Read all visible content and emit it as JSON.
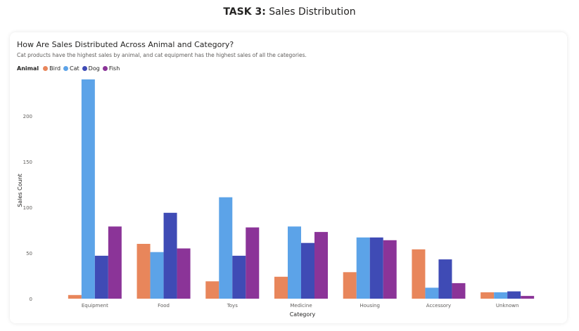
{
  "page": {
    "title_bold": "TASK 3:",
    "title_rest": "Sales Distribution"
  },
  "chart_data": {
    "type": "bar",
    "title": "How Are Sales Distributed Across Animal and Category?",
    "subtitle": "Cat products have the highest sales by animal, and cat equipment has the highest sales of all the categories.",
    "legend_title": "Animal",
    "legend_position": "top-left",
    "xlabel": "Category",
    "ylabel": "Sales Count",
    "ylim": [
      0,
      240
    ],
    "yticks": [
      0,
      50,
      100,
      150,
      200
    ],
    "grid": false,
    "categories": [
      "Equipment",
      "Food",
      "Toys",
      "Medicine",
      "Housing",
      "Accessory",
      "Unknown"
    ],
    "series": [
      {
        "name": "Bird",
        "color": "#E8865B",
        "values": [
          4,
          60,
          19,
          24,
          29,
          54,
          7
        ]
      },
      {
        "name": "Cat",
        "color": "#5CA3E8",
        "values": [
          240,
          51,
          111,
          79,
          67,
          12,
          7
        ]
      },
      {
        "name": "Dog",
        "color": "#3F4BB5",
        "values": [
          47,
          94,
          47,
          61,
          67,
          43,
          8
        ]
      },
      {
        "name": "Fish",
        "color": "#8B3498",
        "values": [
          79,
          55,
          78,
          73,
          64,
          17,
          3
        ]
      }
    ]
  }
}
